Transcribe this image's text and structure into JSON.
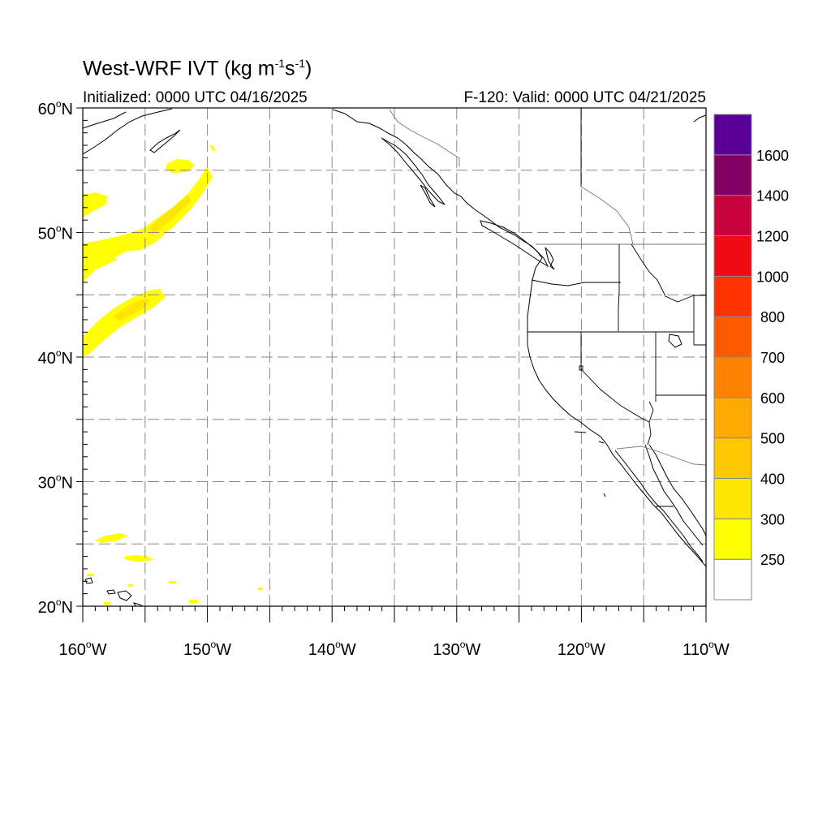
{
  "header": {
    "title_main": "West-WRF IVT (kg m",
    "title_exp1": "-1",
    "title_mid": "s",
    "title_exp2": "-1",
    "title_end": ")",
    "initialized": "Initialized: 0000 UTC 04/16/2025",
    "valid": "F-120: Valid: 0000 UTC 04/21/2025"
  },
  "map": {
    "lon_range": [
      -160,
      -110
    ],
    "lat_range": [
      20,
      60
    ],
    "grid": true,
    "lat_labels": [
      {
        "lat": 60,
        "deg": "60",
        "hemi": "N"
      },
      {
        "lat": 50,
        "deg": "50",
        "hemi": "N"
      },
      {
        "lat": 40,
        "deg": "40",
        "hemi": "N"
      },
      {
        "lat": 30,
        "deg": "30",
        "hemi": "N"
      },
      {
        "lat": 20,
        "deg": "20",
        "hemi": "N"
      }
    ],
    "lon_labels": [
      {
        "lon": -160,
        "deg": "160",
        "hemi": "W"
      },
      {
        "lon": -150,
        "deg": "150",
        "hemi": "W"
      },
      {
        "lon": -140,
        "deg": "140",
        "hemi": "W"
      },
      {
        "lon": -130,
        "deg": "130",
        "hemi": "W"
      },
      {
        "lon": -120,
        "deg": "120",
        "hemi": "W"
      },
      {
        "lon": -110,
        "deg": "110",
        "hemi": "W"
      }
    ]
  },
  "colorbar": {
    "levels": [
      {
        "value": "250",
        "color": "#ffff00"
      },
      {
        "value": "300",
        "color": "#ffe600"
      },
      {
        "value": "400",
        "color": "#ffc800"
      },
      {
        "value": "500",
        "color": "#ffaa00"
      },
      {
        "value": "600",
        "color": "#ff8200"
      },
      {
        "value": "700",
        "color": "#ff5a00"
      },
      {
        "value": "800",
        "color": "#ff3200"
      },
      {
        "value": "1000",
        "color": "#f00a14"
      },
      {
        "value": "1200",
        "color": "#c8003c"
      },
      {
        "value": "1400",
        "color": "#820064"
      },
      {
        "value": "1600",
        "color": "#5a0096"
      }
    ],
    "below_color": "#ffffff"
  }
}
